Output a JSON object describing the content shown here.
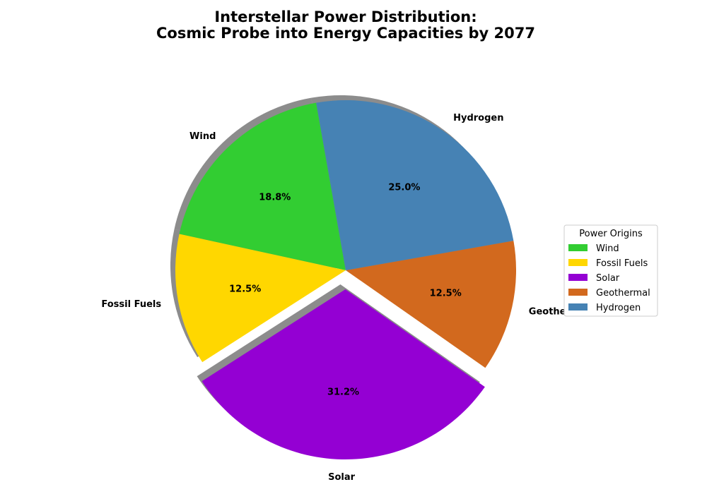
{
  "chart_data": {
    "type": "pie",
    "title_lines": [
      "Interstellar Power Distribution:",
      "Cosmic Probe into Energy Capacities by 2077"
    ],
    "categories": [
      "Wind",
      "Fossil Fuels",
      "Solar",
      "Geothermal",
      "Hydrogen"
    ],
    "values": [
      18.8,
      12.5,
      31.2,
      12.5,
      25.0
    ],
    "percent_labels": [
      "18.8%",
      "12.5%",
      "31.2%",
      "12.5%",
      "25.0%"
    ],
    "colors": [
      "#32cd32",
      "#ffd700",
      "#9400d3",
      "#d2691e",
      "#4682b4"
    ],
    "exploded": [
      "Solar"
    ],
    "shadow": true,
    "legend": {
      "title": "Power Origins",
      "placement": "center-right",
      "entries": [
        "Wind",
        "Fossil Fuels",
        "Solar",
        "Geothermal",
        "Hydrogen"
      ]
    }
  }
}
